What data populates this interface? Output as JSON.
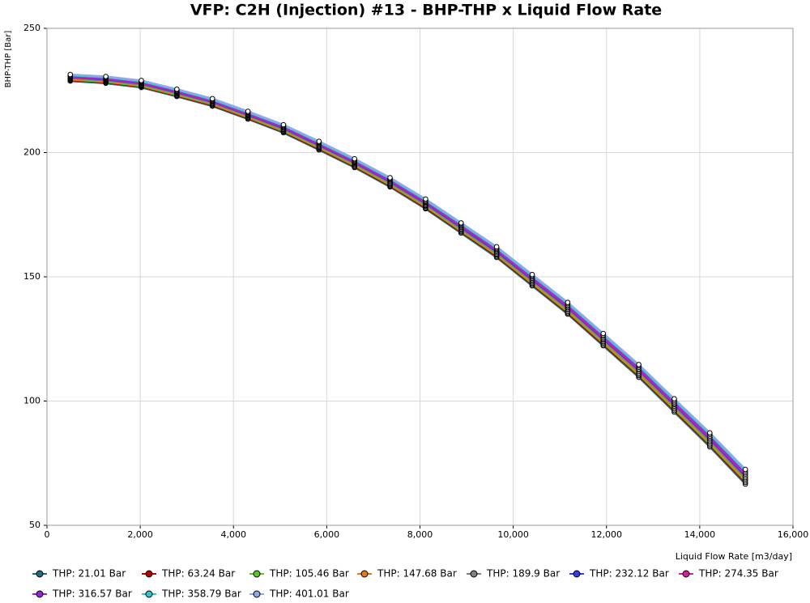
{
  "chart_data": {
    "type": "line",
    "title": "VFP: C2H (Injection) #13 - BHP-THP x Liquid Flow Rate",
    "x_label": "Liquid Flow Rate [m3/day]",
    "y_label": "BHP-THP [Bar]",
    "x": [
      500,
      1262,
      2024,
      2786,
      3548,
      4310,
      5072,
      5834,
      6596,
      7358,
      8120,
      8882,
      9644,
      10406,
      11168,
      11930,
      12692,
      13454,
      14216,
      14978
    ],
    "xlim": [
      0,
      16000
    ],
    "xticks": [
      0,
      {
        "value": 2000,
        "label": "2,000"
      },
      {
        "value": 4000,
        "label": "4,000"
      },
      {
        "value": 6000,
        "label": "6,000"
      },
      {
        "value": 8000,
        "label": "8,000"
      },
      {
        "value": 10000,
        "label": "10,000"
      },
      {
        "value": 12000,
        "label": "12,000"
      },
      {
        "value": 14000,
        "label": "14,000"
      },
      {
        "value": 16000,
        "label": "16,000"
      }
    ],
    "ylim": [
      50,
      250
    ],
    "yticks": [
      50,
      100,
      150,
      200,
      250
    ],
    "grid": true,
    "legend": "bottom",
    "series": [
      {
        "name": "THP: 21.01 Bar",
        "color": "#1f6e7a",
        "values": [
          228.8,
          227.9,
          226.2,
          222.6,
          218.7,
          213.5,
          208.0,
          201.1,
          194.0,
          186.2,
          177.4,
          167.6,
          157.8,
          146.4,
          135.0,
          122.3,
          109.6,
          95.6,
          81.6,
          66.6
        ]
      },
      {
        "name": "THP: 63.24 Bar",
        "color": "#b40000",
        "values": [
          229.1,
          228.2,
          226.5,
          222.9,
          219.0,
          213.8,
          208.4,
          201.5,
          194.4,
          186.6,
          177.8,
          168.1,
          158.3,
          146.9,
          135.5,
          122.8,
          110.2,
          96.2,
          82.2,
          67.3
        ]
      },
      {
        "name": "THP: 105.46 Bar",
        "color": "#5ec62a",
        "values": [
          229.4,
          228.5,
          226.8,
          223.2,
          219.4,
          214.2,
          208.7,
          201.9,
          194.8,
          187.0,
          178.3,
          168.5,
          158.8,
          147.4,
          136.0,
          123.4,
          110.7,
          96.8,
          82.8,
          67.9
        ]
      },
      {
        "name": "THP: 147.68 Bar",
        "color": "#e07b1a",
        "values": [
          229.7,
          228.8,
          227.1,
          223.6,
          219.7,
          214.5,
          209.1,
          202.2,
          195.2,
          187.4,
          178.7,
          169.0,
          159.2,
          147.9,
          136.6,
          123.9,
          111.3,
          97.4,
          83.5,
          68.6
        ]
      },
      {
        "name": "THP: 189.9 Bar",
        "color": "#808080",
        "values": [
          230.0,
          229.1,
          227.4,
          223.9,
          220.0,
          214.9,
          209.4,
          202.6,
          195.6,
          187.8,
          179.1,
          169.4,
          159.7,
          148.4,
          137.1,
          124.5,
          111.9,
          98.0,
          84.1,
          69.2
        ]
      },
      {
        "name": "THP: 232.12 Bar",
        "color": "#3a3ae0",
        "values": [
          230.3,
          229.4,
          227.8,
          224.2,
          220.4,
          215.2,
          209.8,
          203.0,
          196.0,
          188.3,
          179.6,
          169.9,
          160.2,
          148.9,
          137.6,
          125.0,
          112.5,
          98.6,
          84.7,
          69.9
        ]
      },
      {
        "name": "THP: 274.35 Bar",
        "color": "#d8209e",
        "values": [
          230.5,
          229.7,
          228.1,
          224.5,
          220.7,
          215.5,
          210.2,
          203.4,
          196.3,
          188.7,
          180.0,
          170.4,
          160.7,
          149.4,
          138.1,
          125.5,
          113.0,
          99.1,
          85.3,
          70.6
        ]
      },
      {
        "name": "THP: 316.57 Bar",
        "color": "#9a22d6",
        "values": [
          230.8,
          230.0,
          228.4,
          224.8,
          221.0,
          215.9,
          210.5,
          203.8,
          196.7,
          189.1,
          180.4,
          170.8,
          161.2,
          149.9,
          138.6,
          126.1,
          113.6,
          99.7,
          85.9,
          71.2
        ]
      },
      {
        "name": "THP: 358.79 Bar",
        "color": "#36c6c6",
        "values": [
          231.1,
          230.3,
          228.7,
          225.2,
          221.3,
          216.2,
          210.9,
          204.1,
          197.1,
          189.5,
          180.8,
          171.3,
          161.6,
          150.4,
          139.2,
          126.6,
          114.2,
          100.3,
          86.6,
          71.9
        ]
      },
      {
        "name": "THP: 401.01 Bar",
        "color": "#8fa8e8",
        "values": [
          231.4,
          230.6,
          229.0,
          225.5,
          221.7,
          216.6,
          211.2,
          204.5,
          197.5,
          189.9,
          181.3,
          171.7,
          162.1,
          150.9,
          139.7,
          127.2,
          114.7,
          100.9,
          87.2,
          72.5
        ]
      }
    ]
  }
}
